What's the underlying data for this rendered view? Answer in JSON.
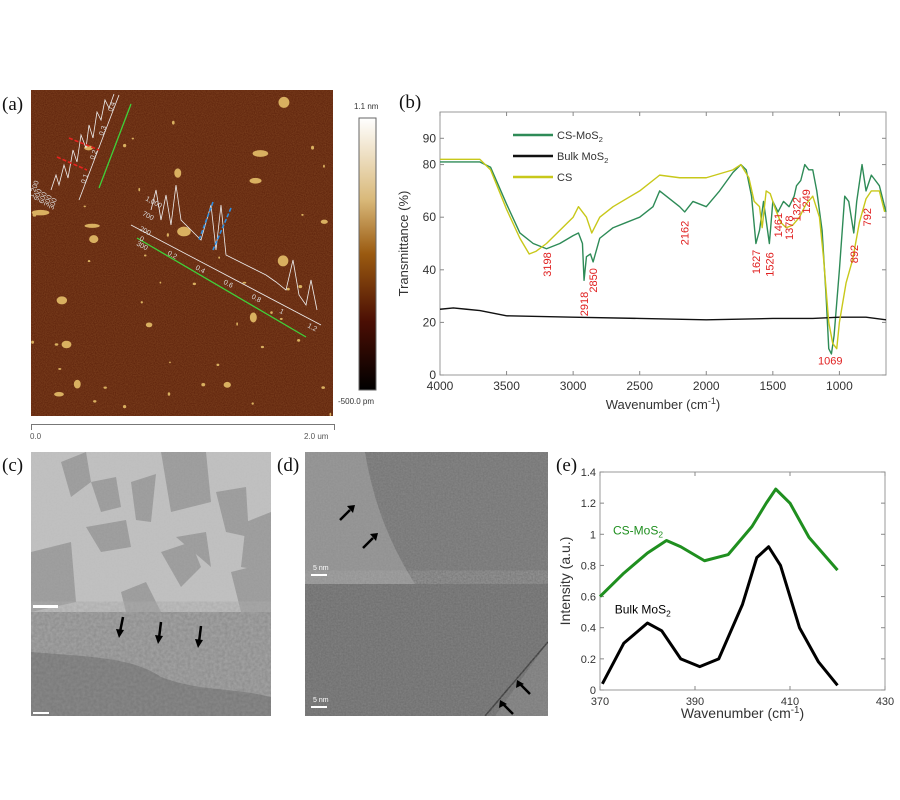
{
  "panels": {
    "a": "(a)",
    "b": "(b)",
    "c": "(c)",
    "d": "(d)",
    "e": "(e)"
  },
  "afm": {
    "colorbar_max": "1.1 nm",
    "colorbar_min": "-500.0 pm",
    "scale_start": "0.0",
    "scale_end": "2.0 um",
    "profile1_ticks": [
      "0.1",
      "0.2",
      "0.3",
      "0.4"
    ],
    "profile1_yticks": [
      "1,200",
      "900",
      "600",
      "300",
      "300"
    ],
    "profile2_ticks": [
      "0",
      "0.2",
      "0.4",
      "0.6",
      "0.8",
      "1",
      "1.2"
    ],
    "profile2_yticks": [
      "1,000",
      "700",
      "200",
      "300"
    ],
    "colors": {
      "substrate": "#5a1e08",
      "particle": "#d9b060",
      "trace_green": "#3fd13a",
      "mark_red": "#e8231f",
      "mark_blue": "#2f8fe0"
    }
  },
  "tem": {
    "d_scale_top": "5 nm",
    "d_scale_bottom": "5 nm"
  },
  "chart_data": [
    {
      "id": "ftir",
      "type": "line",
      "title": "",
      "xlabel": "Wavenumber (cm-1)",
      "ylabel": "Transmittance (%)",
      "xlim": [
        4000,
        650
      ],
      "ylim": [
        0,
        100
      ],
      "xticks": [
        4000,
        3500,
        3000,
        2500,
        2000,
        1500,
        1000
      ],
      "yticks": [
        0,
        20,
        40,
        60,
        80,
        90
      ],
      "legend_position": "top-left",
      "series": [
        {
          "name": "CS-MoS2",
          "color": "#2e8b57",
          "points": [
            [
              4000,
              81
            ],
            [
              3700,
              81
            ],
            [
              3620,
              79
            ],
            [
              3500,
              65
            ],
            [
              3400,
              54
            ],
            [
              3300,
              50
            ],
            [
              3200,
              48
            ],
            [
              3100,
              50
            ],
            [
              3000,
              53
            ],
            [
              2960,
              54
            ],
            [
              2930,
              50
            ],
            [
              2918,
              36
            ],
            [
              2900,
              45
            ],
            [
              2870,
              46
            ],
            [
              2850,
              43
            ],
            [
              2800,
              52
            ],
            [
              2700,
              56
            ],
            [
              2600,
              58
            ],
            [
              2500,
              60
            ],
            [
              2400,
              64
            ],
            [
              2350,
              70
            ],
            [
              2300,
              68
            ],
            [
              2200,
              64
            ],
            [
              2162,
              62
            ],
            [
              2100,
              66
            ],
            [
              2000,
              64
            ],
            [
              1900,
              70
            ],
            [
              1800,
              77
            ],
            [
              1740,
              80
            ],
            [
              1700,
              78
            ],
            [
              1660,
              68
            ],
            [
              1627,
              50
            ],
            [
              1600,
              55
            ],
            [
              1570,
              66
            ],
            [
              1526,
              50
            ],
            [
              1500,
              66
            ],
            [
              1461,
              62
            ],
            [
              1420,
              66
            ],
            [
              1378,
              64
            ],
            [
              1340,
              68
            ],
            [
              1322,
              72
            ],
            [
              1290,
              74
            ],
            [
              1260,
              80
            ],
            [
              1230,
              78
            ],
            [
              1200,
              78
            ],
            [
              1170,
              70
            ],
            [
              1130,
              55
            ],
            [
              1100,
              30
            ],
            [
              1080,
              10
            ],
            [
              1060,
              8
            ],
            [
              1040,
              15
            ],
            [
              1000,
              40
            ],
            [
              960,
              68
            ],
            [
              930,
              66
            ],
            [
              892,
              54
            ],
            [
              870,
              66
            ],
            [
              830,
              80
            ],
            [
              800,
              70
            ],
            [
              760,
              76
            ],
            [
              700,
              72
            ],
            [
              650,
              62
            ]
          ]
        },
        {
          "name": "Bulk MoS2",
          "color": "#111111",
          "points": [
            [
              4000,
              25
            ],
            [
              3900,
              25.5
            ],
            [
              3800,
              25
            ],
            [
              3700,
              24.5
            ],
            [
              3600,
              23.5
            ],
            [
              3500,
              22.5
            ],
            [
              3000,
              22
            ],
            [
              2500,
              21.5
            ],
            [
              2000,
              21
            ],
            [
              1500,
              21.5
            ],
            [
              1200,
              21.5
            ],
            [
              1000,
              22
            ],
            [
              800,
              22
            ],
            [
              650,
              21
            ]
          ]
        },
        {
          "name": "CS",
          "color": "#c8c81a",
          "points": [
            [
              4000,
              82
            ],
            [
              3700,
              82
            ],
            [
              3620,
              78
            ],
            [
              3500,
              63
            ],
            [
              3400,
              52
            ],
            [
              3330,
              46
            ],
            [
              3280,
              47
            ],
            [
              3200,
              50
            ],
            [
              3100,
              55
            ],
            [
              3000,
              60
            ],
            [
              2960,
              64
            ],
            [
              2900,
              60
            ],
            [
              2860,
              54
            ],
            [
              2800,
              60
            ],
            [
              2700,
              64
            ],
            [
              2500,
              70
            ],
            [
              2350,
              76
            ],
            [
              2200,
              75
            ],
            [
              2000,
              75
            ],
            [
              1800,
              78
            ],
            [
              1740,
              80
            ],
            [
              1680,
              75
            ],
            [
              1640,
              66
            ],
            [
              1600,
              64
            ],
            [
              1580,
              56
            ],
            [
              1550,
              70
            ],
            [
              1520,
              69
            ],
            [
              1480,
              63
            ],
            [
              1440,
              58
            ],
            [
              1400,
              56
            ],
            [
              1350,
              57
            ],
            [
              1300,
              60
            ],
            [
              1250,
              65
            ],
            [
              1200,
              68
            ],
            [
              1150,
              60
            ],
            [
              1120,
              45
            ],
            [
              1080,
              20
            ],
            [
              1050,
              12
            ],
            [
              1020,
              10
            ],
            [
              1000,
              20
            ],
            [
              950,
              35
            ],
            [
              900,
              44
            ],
            [
              850,
              58
            ],
            [
              800,
              67
            ],
            [
              760,
              70
            ],
            [
              700,
              70
            ],
            [
              660,
              62
            ]
          ]
        }
      ],
      "annotations": [
        {
          "text": "3198",
          "x": 3198,
          "y": 42,
          "rotated": true
        },
        {
          "text": "2918",
          "x": 2918,
          "y": 27,
          "rotated": true
        },
        {
          "text": "2850",
          "x": 2850,
          "y": 36,
          "rotated": true
        },
        {
          "text": "2162",
          "x": 2162,
          "y": 54,
          "rotated": true
        },
        {
          "text": "1627",
          "x": 1627,
          "y": 43,
          "rotated": true
        },
        {
          "text": "1526",
          "x": 1526,
          "y": 42,
          "rotated": true
        },
        {
          "text": "1461",
          "x": 1461,
          "y": 57,
          "rotated": true
        },
        {
          "text": "1378",
          "x": 1378,
          "y": 56,
          "rotated": true
        },
        {
          "text": "1322",
          "x": 1322,
          "y": 63,
          "rotated": true
        },
        {
          "text": "1249",
          "x": 1249,
          "y": 66,
          "rotated": true
        },
        {
          "text": "892",
          "x": 892,
          "y": 46,
          "rotated": true
        },
        {
          "text": "792",
          "x": 792,
          "y": 60,
          "rotated": true
        },
        {
          "text": "1069",
          "x": 1069,
          "y": 4,
          "rotated": false
        }
      ],
      "annotation_color": "#e02020"
    },
    {
      "id": "raman",
      "type": "line",
      "title": "",
      "xlabel": "Wavenumber (cm-1)",
      "ylabel": "Intensity (a.u.)",
      "xlim": [
        370,
        430
      ],
      "ylim": [
        0,
        1.4
      ],
      "xticks": [
        370,
        390,
        410,
        430
      ],
      "yticks": [
        0,
        0.2,
        0.4,
        0.6,
        0.8,
        1,
        1.2,
        1.4
      ],
      "series": [
        {
          "name": "CS-MoS2",
          "color": "#1f8f1f",
          "label_at": [
            378,
            1.0
          ],
          "points": [
            [
              370,
              0.6
            ],
            [
              375,
              0.75
            ],
            [
              380,
              0.88
            ],
            [
              384,
              0.96
            ],
            [
              387,
              0.92
            ],
            [
              392,
              0.83
            ],
            [
              397,
              0.87
            ],
            [
              402,
              1.05
            ],
            [
              405,
              1.2
            ],
            [
              407,
              1.29
            ],
            [
              410,
              1.2
            ],
            [
              414,
              0.98
            ],
            [
              420,
              0.77
            ]
          ]
        },
        {
          "name": "Bulk MoS2",
          "color": "#000000",
          "label_at": [
            379,
            0.49
          ],
          "points": [
            [
              370.5,
              0.04
            ],
            [
              375,
              0.3
            ],
            [
              380,
              0.43
            ],
            [
              383,
              0.38
            ],
            [
              387,
              0.2
            ],
            [
              391,
              0.15
            ],
            [
              395,
              0.2
            ],
            [
              400,
              0.55
            ],
            [
              403,
              0.85
            ],
            [
              405.5,
              0.92
            ],
            [
              408,
              0.8
            ],
            [
              412,
              0.4
            ],
            [
              416,
              0.18
            ],
            [
              420,
              0.03
            ]
          ]
        }
      ]
    }
  ]
}
